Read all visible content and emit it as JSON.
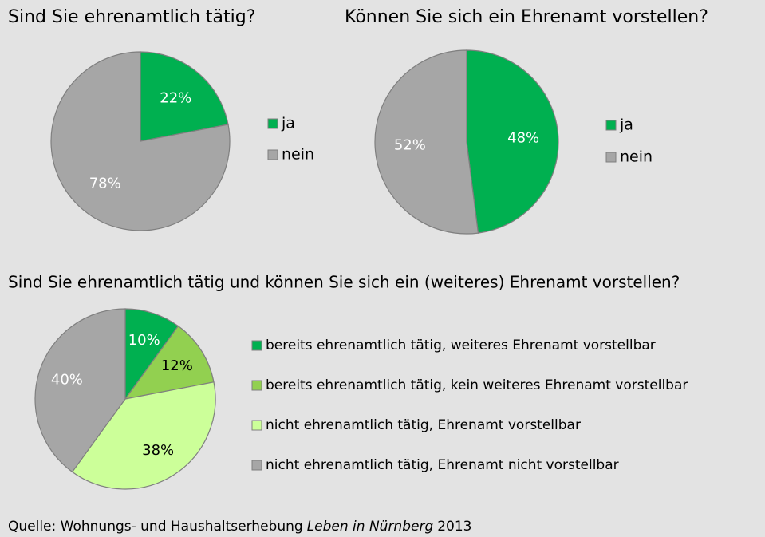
{
  "chart_data": [
    {
      "type": "pie",
      "title": "Sind Sie ehrenamtlich tätig?",
      "categories": [
        "ja",
        "nein"
      ],
      "values": [
        22,
        78
      ],
      "value_labels": [
        "22%",
        "78%"
      ],
      "colors": [
        "#00b050",
        "#a6a6a6"
      ],
      "label_colors": [
        "#ffffff",
        "#ffffff"
      ],
      "legend": "right"
    },
    {
      "type": "pie",
      "title": "Können Sie sich ein Ehrenamt vorstellen?",
      "categories": [
        "ja",
        "nein"
      ],
      "values": [
        48,
        52
      ],
      "value_labels": [
        "48%",
        "52%"
      ],
      "colors": [
        "#00b050",
        "#a6a6a6"
      ],
      "label_colors": [
        "#ffffff",
        "#ffffff"
      ],
      "legend": "right"
    },
    {
      "type": "pie",
      "title": "Sind Sie ehrenamtlich tätig und können Sie sich ein (weiteres) Ehrenamt vorstellen?",
      "categories": [
        "bereits ehrenamtlich tätig, weiteres Ehrenamt vorstellbar",
        "bereits ehrenamtlich tätig, kein weiteres Ehrenamt vorstellbar",
        "nicht ehrenamtlich tätig, Ehrenamt vorstellbar",
        "nicht ehrenamtlich tätig, Ehrenamt nicht vorstellbar"
      ],
      "values": [
        10,
        12,
        38,
        40
      ],
      "value_labels": [
        "10%",
        "12%",
        "38%",
        "40%"
      ],
      "colors": [
        "#00b050",
        "#92d050",
        "#ccff99",
        "#a6a6a6"
      ],
      "label_colors": [
        "#ffffff",
        "#000000",
        "#000000",
        "#ffffff"
      ],
      "legend": "right"
    }
  ],
  "source": {
    "prefix": "Quelle: Wohnungs- und Haushaltserhebung",
    "title": "Leben in Nürnberg",
    "suffix": "2013"
  }
}
